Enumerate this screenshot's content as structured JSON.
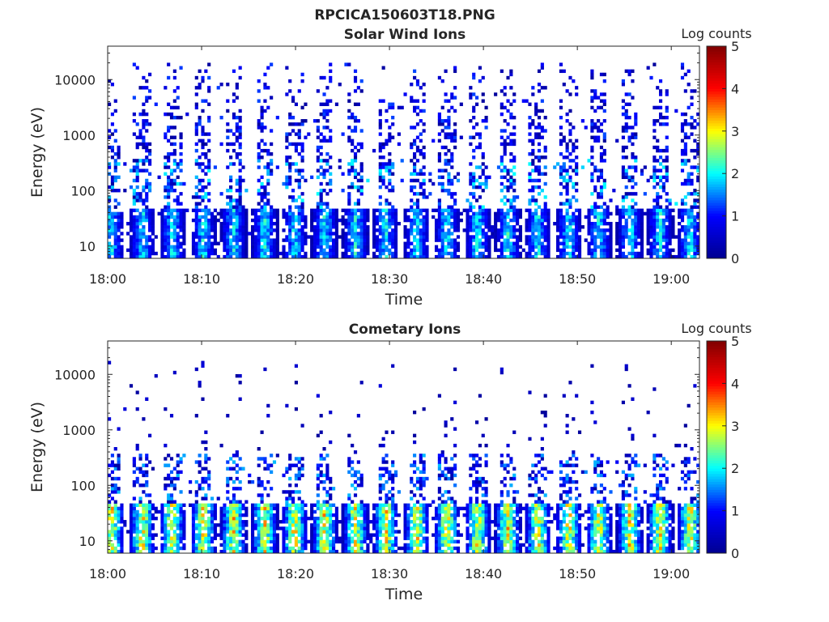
{
  "figure": {
    "title": "RPCICA150603T18.PNG"
  },
  "colors": {
    "axis": "#262626",
    "jet_stops": [
      "#00008f",
      "#0000ff",
      "#00ffff",
      "#ffff00",
      "#ff0000",
      "#800000"
    ]
  },
  "chart_data": [
    {
      "type": "heatmap",
      "title": "Solar Wind Ions",
      "xlabel": "Time",
      "ylabel": "Energy (eV)",
      "x_ticks": [
        "18:00",
        "18:10",
        "18:20",
        "18:30",
        "18:40",
        "18:50",
        "19:00"
      ],
      "x_range": [
        "18:00",
        "19:03"
      ],
      "y_scale": "log",
      "y_ticks": [
        "10",
        "100",
        "1000",
        "10000"
      ],
      "y_range": [
        6,
        40000
      ],
      "colorbar": {
        "label": "Log counts",
        "range": [
          0,
          5
        ],
        "ticks": [
          "0",
          "1",
          "2",
          "3",
          "4",
          "5"
        ],
        "colormap": "jet"
      },
      "pulse_minutes": [
        0.4,
        3.7,
        6.9,
        10.2,
        13.4,
        16.7,
        19.9,
        23.1,
        26.4,
        29.6,
        32.9,
        36.1,
        39.4,
        42.6,
        45.8,
        49.1,
        52.3,
        55.6,
        58.8,
        62.0
      ],
      "profile": {
        "high_energy_density": 0.42,
        "low_energy_peak": 2.2
      }
    },
    {
      "type": "heatmap",
      "title": "Cometary Ions",
      "xlabel": "Time",
      "ylabel": "Energy (eV)",
      "x_ticks": [
        "18:00",
        "18:10",
        "18:20",
        "18:30",
        "18:40",
        "18:50",
        "19:00"
      ],
      "x_range": [
        "18:00",
        "19:03"
      ],
      "y_scale": "log",
      "y_ticks": [
        "10",
        "100",
        "1000",
        "10000"
      ],
      "y_range": [
        6,
        40000
      ],
      "colorbar": {
        "label": "Log counts",
        "range": [
          0,
          5
        ],
        "ticks": [
          "0",
          "1",
          "2",
          "3",
          "4",
          "5"
        ],
        "colormap": "jet"
      },
      "pulse_minutes": [
        0.4,
        3.7,
        6.9,
        10.2,
        13.4,
        16.7,
        19.9,
        23.1,
        26.4,
        29.6,
        32.9,
        36.1,
        39.4,
        42.6,
        45.8,
        49.1,
        52.3,
        55.6,
        58.8,
        62.0
      ],
      "profile": {
        "high_energy_density": 0.05,
        "low_energy_peak": 3.4
      }
    }
  ]
}
